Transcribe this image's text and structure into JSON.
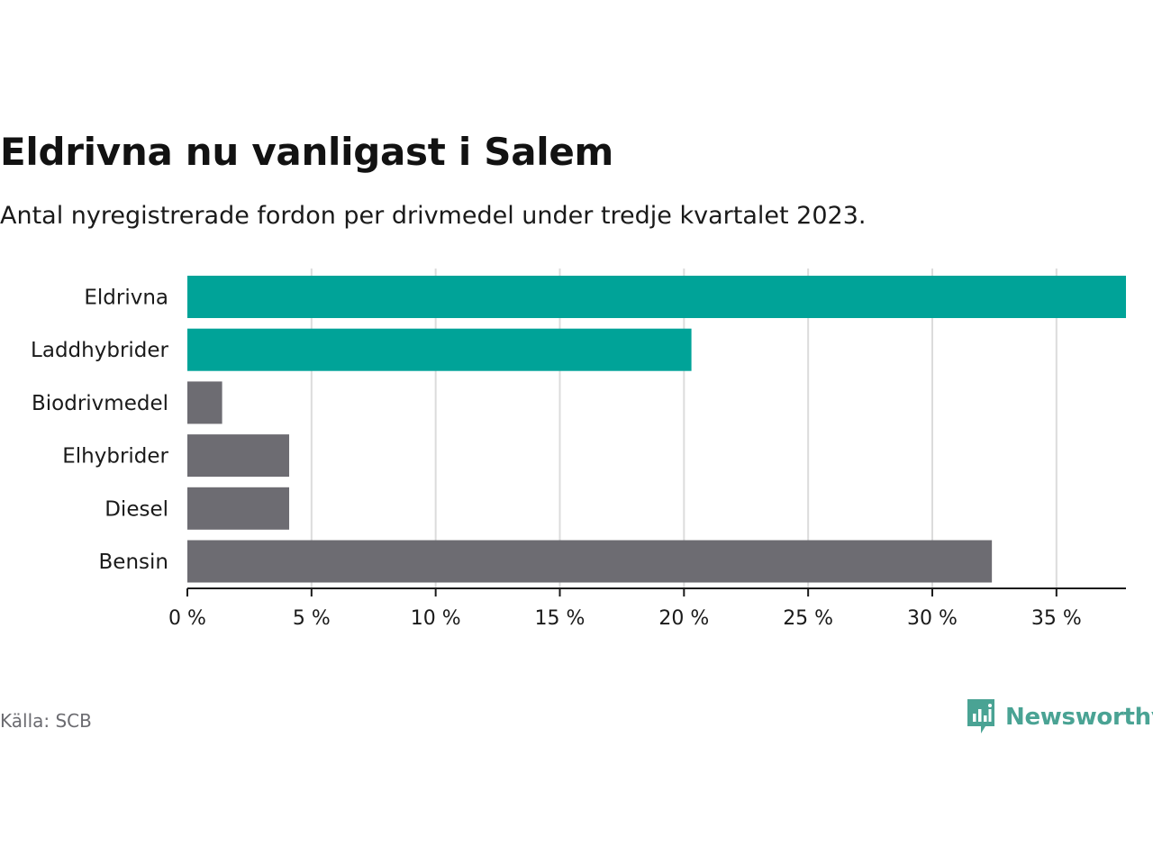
{
  "title": "Eldrivna nu vanligast i Salem",
  "subtitle": "Antal nyregistrerade fordon per drivmedel under tredje kvartalet 2023.",
  "source": "Källa: SCB",
  "brand": {
    "name": "Newsworthy",
    "icon": "newsworthy-logo-icon"
  },
  "colors": {
    "highlight": "#00a398",
    "default": "#6d6c72",
    "grid": "#dcdcdc",
    "axis": "#1a1a1a",
    "brand": "#4aa394"
  },
  "chart_data": {
    "type": "bar",
    "orientation": "horizontal",
    "categories": [
      "Eldrivna",
      "Laddhybrider",
      "Biodrivmedel",
      "Elhybrider",
      "Diesel",
      "Bensin"
    ],
    "values": [
      37.8,
      20.3,
      1.4,
      4.1,
      4.1,
      32.4
    ],
    "highlighted": [
      true,
      true,
      false,
      false,
      false,
      false
    ],
    "unit": "%",
    "xlim": [
      0,
      37.8
    ],
    "xticks": [
      0,
      5,
      10,
      15,
      20,
      25,
      30,
      35
    ],
    "xtick_labels": [
      "0 %",
      "5 %",
      "10 %",
      "15 %",
      "20 %",
      "25 %",
      "30 %",
      "35 %"
    ],
    "title": "Eldrivna nu vanligast i Salem",
    "xlabel": "",
    "ylabel": "",
    "grid": "vertical"
  }
}
